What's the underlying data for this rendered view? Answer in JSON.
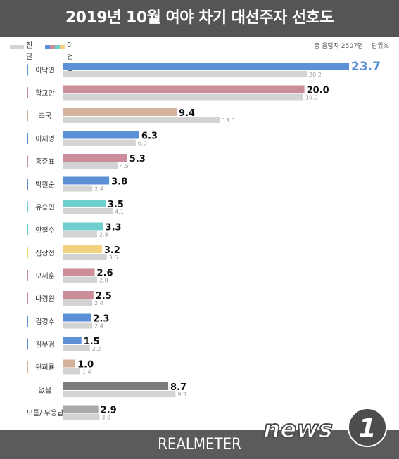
{
  "title": "2019년 10월 여야 차기 대선주자 선호도",
  "legend": {
    "previous_label": "전달",
    "current_label": "이번달"
  },
  "note": {
    "sample": "총 응답자 2507명",
    "unit": "단위%"
  },
  "brand": "REALMETER",
  "watermark": {
    "text": "news",
    "digit": "1"
  },
  "colors": {
    "header_bg": "#555555",
    "previous_bar": "#d3d3d3",
    "current_highlight_label": "#5b8fd6",
    "party_blue": "#5b8fd6",
    "party_pink": "#cc8d9b",
    "party_tan": "#d4b29c",
    "party_teal": "#6fcfcf",
    "party_yellow": "#f2d27d",
    "none_gray": "#7b7b7b",
    "unknown_gray": "#a8a8a8",
    "watermark": "#4d4d4d"
  },
  "chart_data": {
    "type": "bar",
    "orientation": "horizontal",
    "categories": [
      "이낙연",
      "황교안",
      "조국",
      "이재명",
      "홍준표",
      "박원순",
      "유승민",
      "안철수",
      "심상정",
      "오세훈",
      "나경원",
      "김경수",
      "김부겸",
      "원희룡",
      "없음",
      "모름/ 무응답"
    ],
    "series": [
      {
        "name": "이번달",
        "values": [
          23.7,
          20.0,
          9.4,
          6.3,
          5.3,
          3.8,
          3.5,
          3.3,
          3.2,
          2.6,
          2.5,
          2.3,
          1.5,
          1.0,
          8.7,
          2.9
        ]
      },
      {
        "name": "전달",
        "values": [
          20.2,
          19.9,
          13.0,
          6.0,
          4.5,
          2.4,
          4.1,
          2.8,
          3.6,
          2.8,
          2.4,
          2.4,
          2.2,
          1.4,
          9.3,
          3.0
        ]
      }
    ],
    "current_labels": [
      "23.7",
      "20.0",
      "9.4",
      "6.3",
      "5.3",
      "3.8",
      "3.5",
      "3.3",
      "3.2",
      "2.6",
      "2.5",
      "2.3",
      "1.5",
      "1.0",
      "8.7",
      "2.9"
    ],
    "previous_labels": [
      "20.2",
      "19.9",
      "13.0",
      "6.0",
      "4.5",
      "2.4",
      "4.1",
      "2.8",
      "3.6",
      "2.8",
      "2.4",
      "2.4",
      "2.2",
      "1.4",
      "9.3",
      "3.0"
    ],
    "bar_colors": [
      "#5b8fd6",
      "#cc8d9b",
      "#d4b29c",
      "#5b8fd6",
      "#cc8d9b",
      "#5b8fd6",
      "#6fcfcf",
      "#6fcfcf",
      "#f2d27d",
      "#cc8d9b",
      "#cc8d9b",
      "#5b8fd6",
      "#5b8fd6",
      "#d4b29c",
      "#7b7b7b",
      "#a8a8a8"
    ],
    "marker_colors": [
      "#5b8fd6",
      "#cc8d9b",
      "#d4b29c",
      "#5b8fd6",
      "#cc8d9b",
      "#5b8fd6",
      "#6fcfcf",
      "#6fcfcf",
      "#f2d27d",
      "#cc8d9b",
      "#cc8d9b",
      "#5b8fd6",
      "#5b8fd6",
      "#d4b29c",
      "",
      ""
    ],
    "xlim": [
      0,
      23.7
    ],
    "grid": false,
    "legend_position": "top-left"
  }
}
